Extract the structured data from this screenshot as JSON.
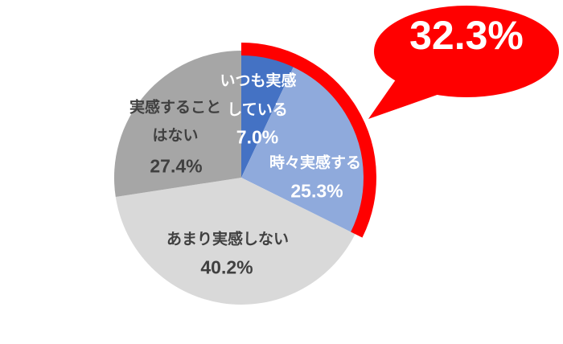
{
  "chart_data": {
    "type": "pie",
    "title": "",
    "categories": [
      "いつも実感している",
      "時々実感する",
      "あまり実感しない",
      "実感することはない"
    ],
    "values": [
      7.0,
      25.3,
      40.2,
      27.4
    ],
    "unit": "%",
    "colors": [
      "#4472C4",
      "#8FAADC",
      "#D9D9D9",
      "#A6A6A6"
    ],
    "start_angle_deg": 0,
    "direction": "clockwise",
    "legend": "none",
    "highlight_arc": {
      "percent": 32.3,
      "covers": [
        "いつも実感している",
        "時々実感する"
      ],
      "color": "#FF0000"
    }
  },
  "slice_labels": [
    {
      "line1": "いつも実感",
      "line2": "している",
      "value": "7.0%"
    },
    {
      "line1": "時々実感する",
      "value": "25.3%"
    },
    {
      "line1": "あまり実感しない",
      "value": "40.2%"
    },
    {
      "line1": "実感すること",
      "line2": "はない",
      "value": "27.4%"
    }
  ],
  "callout": {
    "text": "32.3%",
    "fill": "#FF0000",
    "text_color": "#FFFFFF"
  },
  "colors": {
    "background": "#FFFFFF",
    "label_on_blue": "#FFFFFF",
    "label_on_gray": "#404040"
  }
}
